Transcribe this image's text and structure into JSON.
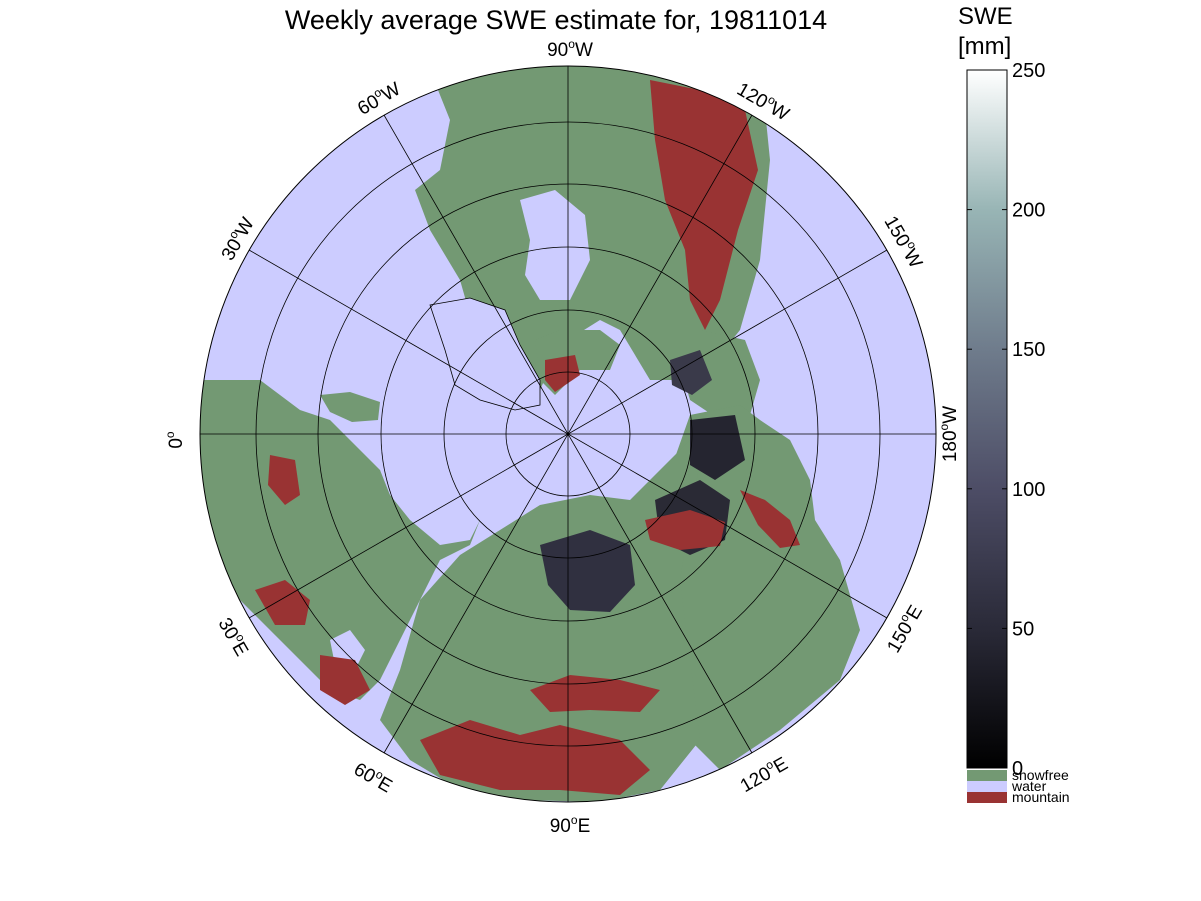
{
  "figure": {
    "title": "Weekly average SWE estimate for, 19811014",
    "projection": "north-polar-stereographic"
  },
  "map": {
    "colors": {
      "water": "#ccccff",
      "snowfree": "#739973",
      "mountain": "#993333",
      "graticule": "#000000"
    },
    "longitude_labels": [
      {
        "id": "lon-90w",
        "deg": "90",
        "hemi": "W"
      },
      {
        "id": "lon-120w",
        "deg": "120",
        "hemi": "W"
      },
      {
        "id": "lon-150w",
        "deg": "150",
        "hemi": "W"
      },
      {
        "id": "lon-180w",
        "deg": "180",
        "hemi": "W"
      },
      {
        "id": "lon-150e",
        "deg": "150",
        "hemi": "E"
      },
      {
        "id": "lon-120e",
        "deg": "120",
        "hemi": "E"
      },
      {
        "id": "lon-90e",
        "deg": "90",
        "hemi": "E"
      },
      {
        "id": "lon-60e",
        "deg": "60",
        "hemi": "E"
      },
      {
        "id": "lon-30e",
        "deg": "30",
        "hemi": "E"
      },
      {
        "id": "lon-0",
        "deg": "0",
        "hemi": ""
      },
      {
        "id": "lon-30w",
        "deg": "30",
        "hemi": "W"
      },
      {
        "id": "lon-60w",
        "deg": "60",
        "hemi": "W"
      }
    ]
  },
  "colorbar": {
    "label_line1": "SWE",
    "label_line2": "[mm]",
    "ticks": [
      "0",
      "50",
      "100",
      "150",
      "200",
      "250"
    ],
    "range": [
      0,
      250
    ],
    "gradient": [
      "#000000",
      "#2a2a38",
      "#4d4d66",
      "#6f7c8c",
      "#98b5b5",
      "#ffffff"
    ],
    "categories": [
      {
        "label": "snowfree",
        "color": "#739973"
      },
      {
        "label": "water",
        "color": "#ccccff"
      },
      {
        "label": "mountain",
        "color": "#993333"
      }
    ]
  }
}
